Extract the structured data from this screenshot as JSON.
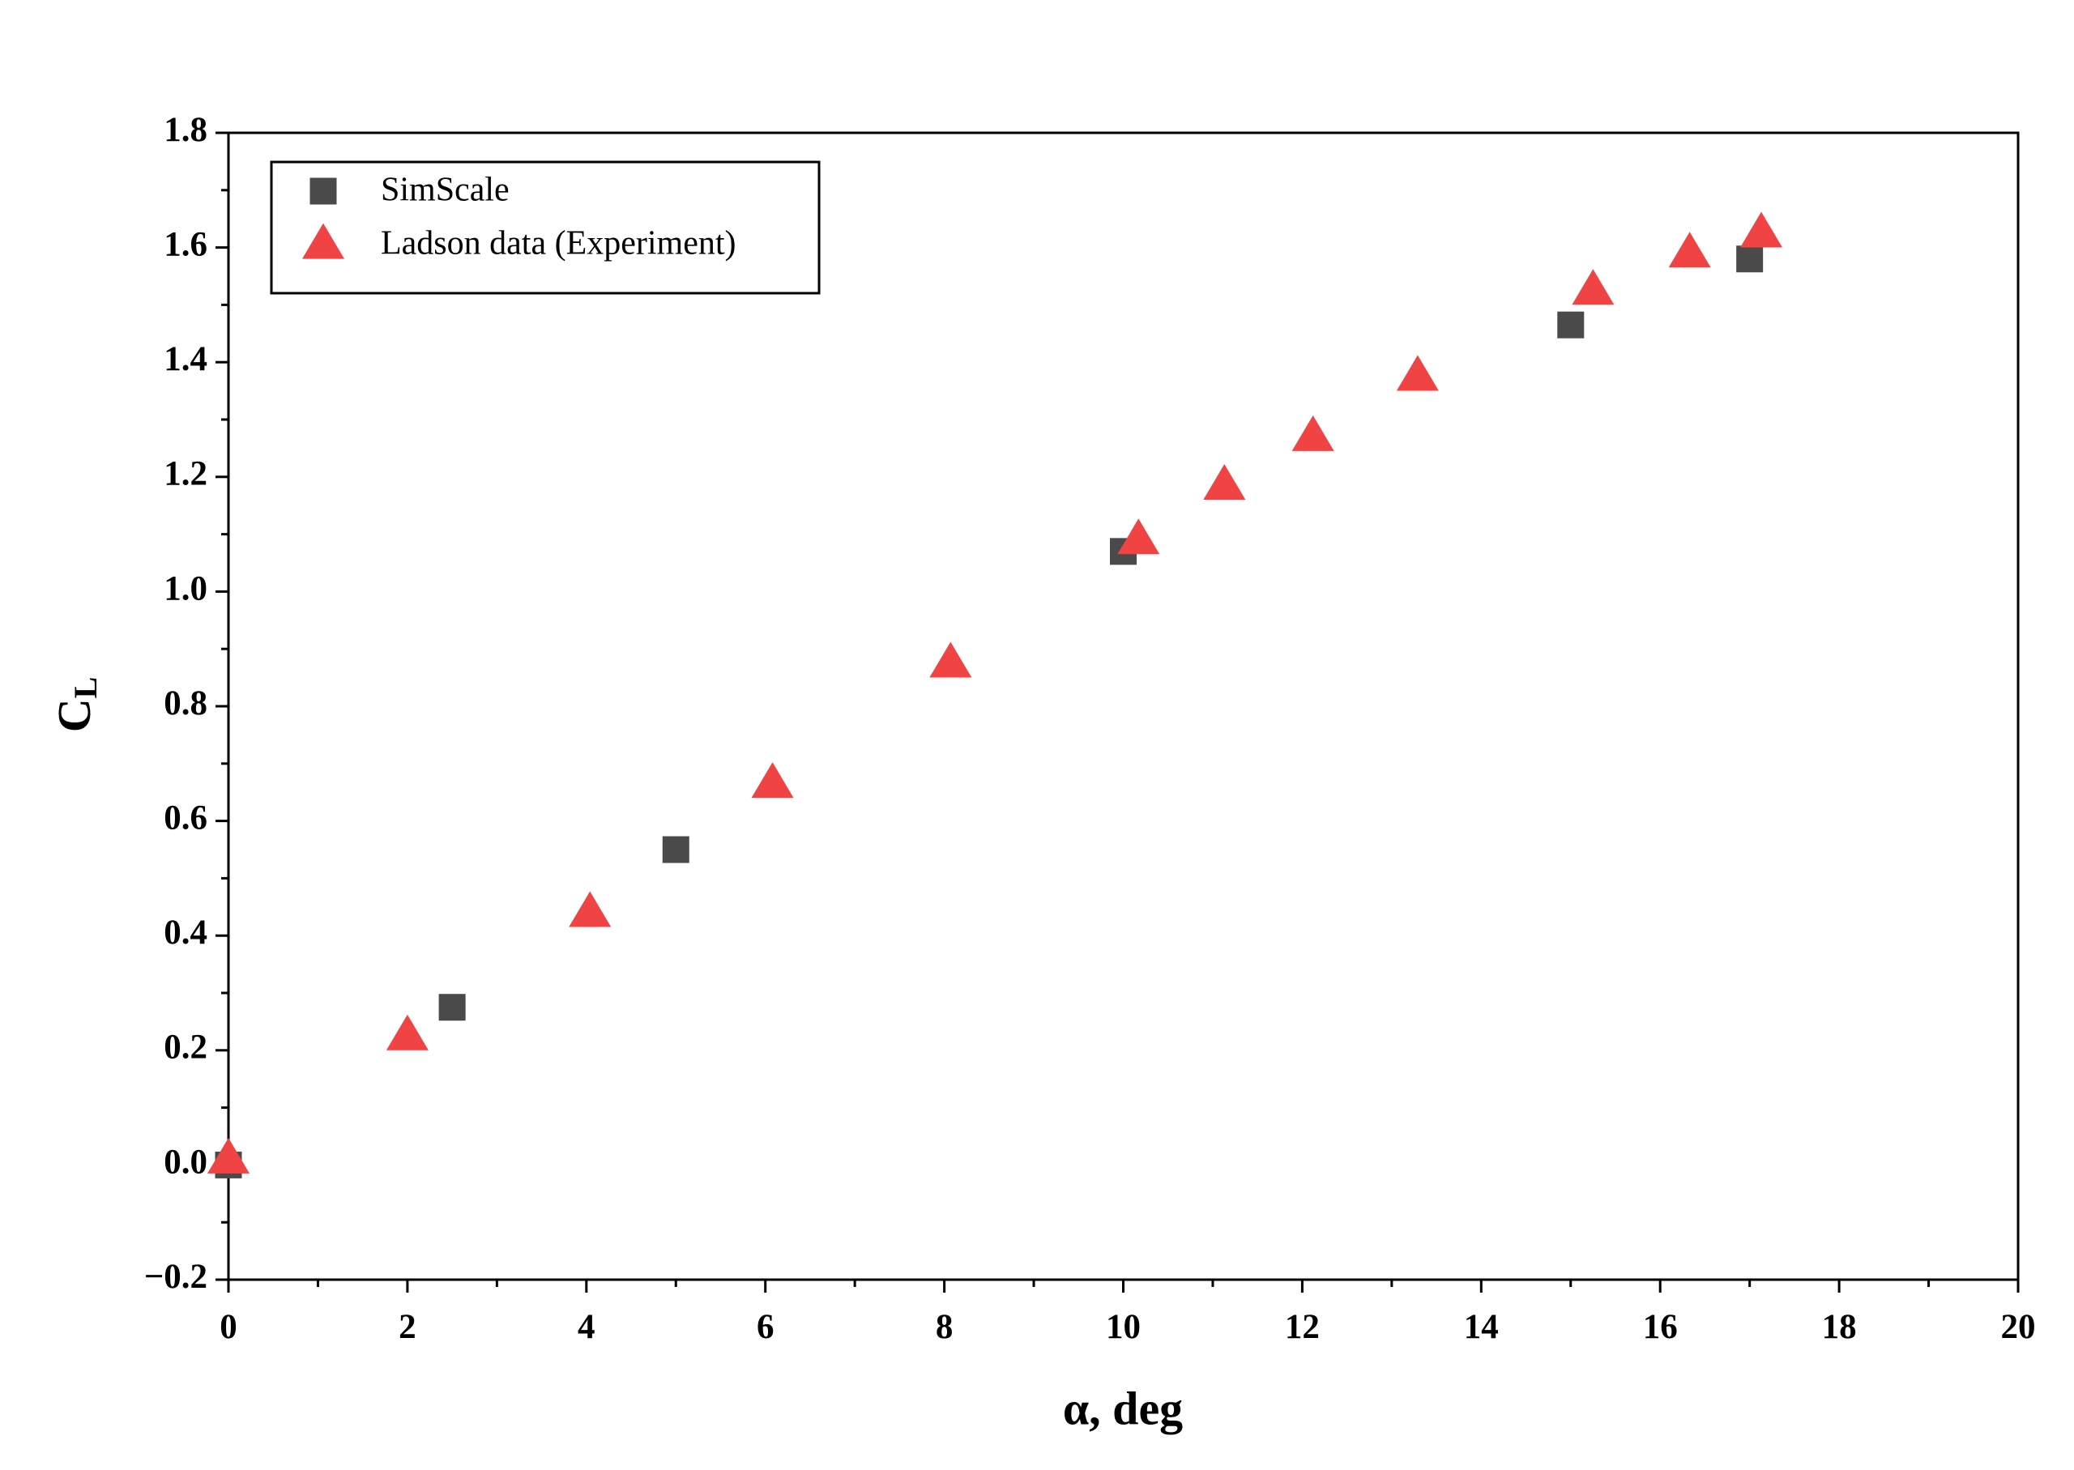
{
  "chart_data": {
    "type": "scatter",
    "xlabel": "α, deg",
    "ylabel_main": "C",
    "ylabel_sub": "L",
    "xlim": [
      0,
      20
    ],
    "ylim": [
      -0.2,
      1.8
    ],
    "xticks": [
      0,
      2,
      4,
      6,
      8,
      10,
      12,
      14,
      16,
      18,
      20
    ],
    "yticks": [
      {
        "value": -0.2,
        "label": "−0.2"
      },
      {
        "value": 0,
        "label": "0.0"
      },
      0.2,
      0.4,
      0.6,
      0.8,
      {
        "value": 1,
        "label": "1.0"
      },
      1.2,
      1.4,
      1.6,
      1.8
    ],
    "legend": "upper left",
    "series": [
      {
        "name": "SimScale",
        "color": "#4a4a4a",
        "marker": "square",
        "x": [
          0,
          2.5,
          5,
          10,
          15,
          17
        ],
        "values": [
          0,
          0.275,
          0.55,
          1.07,
          1.465,
          1.58
        ]
      },
      {
        "name": "Ladson data (Experiment)",
        "color": "#f04444",
        "marker": "triangle",
        "x": [
          0,
          2,
          4.04,
          6.08,
          8.07,
          10.17,
          11.13,
          12.12,
          13.29,
          15.25,
          16.33,
          17.13
        ],
        "values": [
          0.01,
          0.225,
          0.44,
          0.665,
          0.875,
          1.09,
          1.185,
          1.27,
          1.375,
          1.525,
          1.59,
          1.625
        ]
      }
    ]
  }
}
